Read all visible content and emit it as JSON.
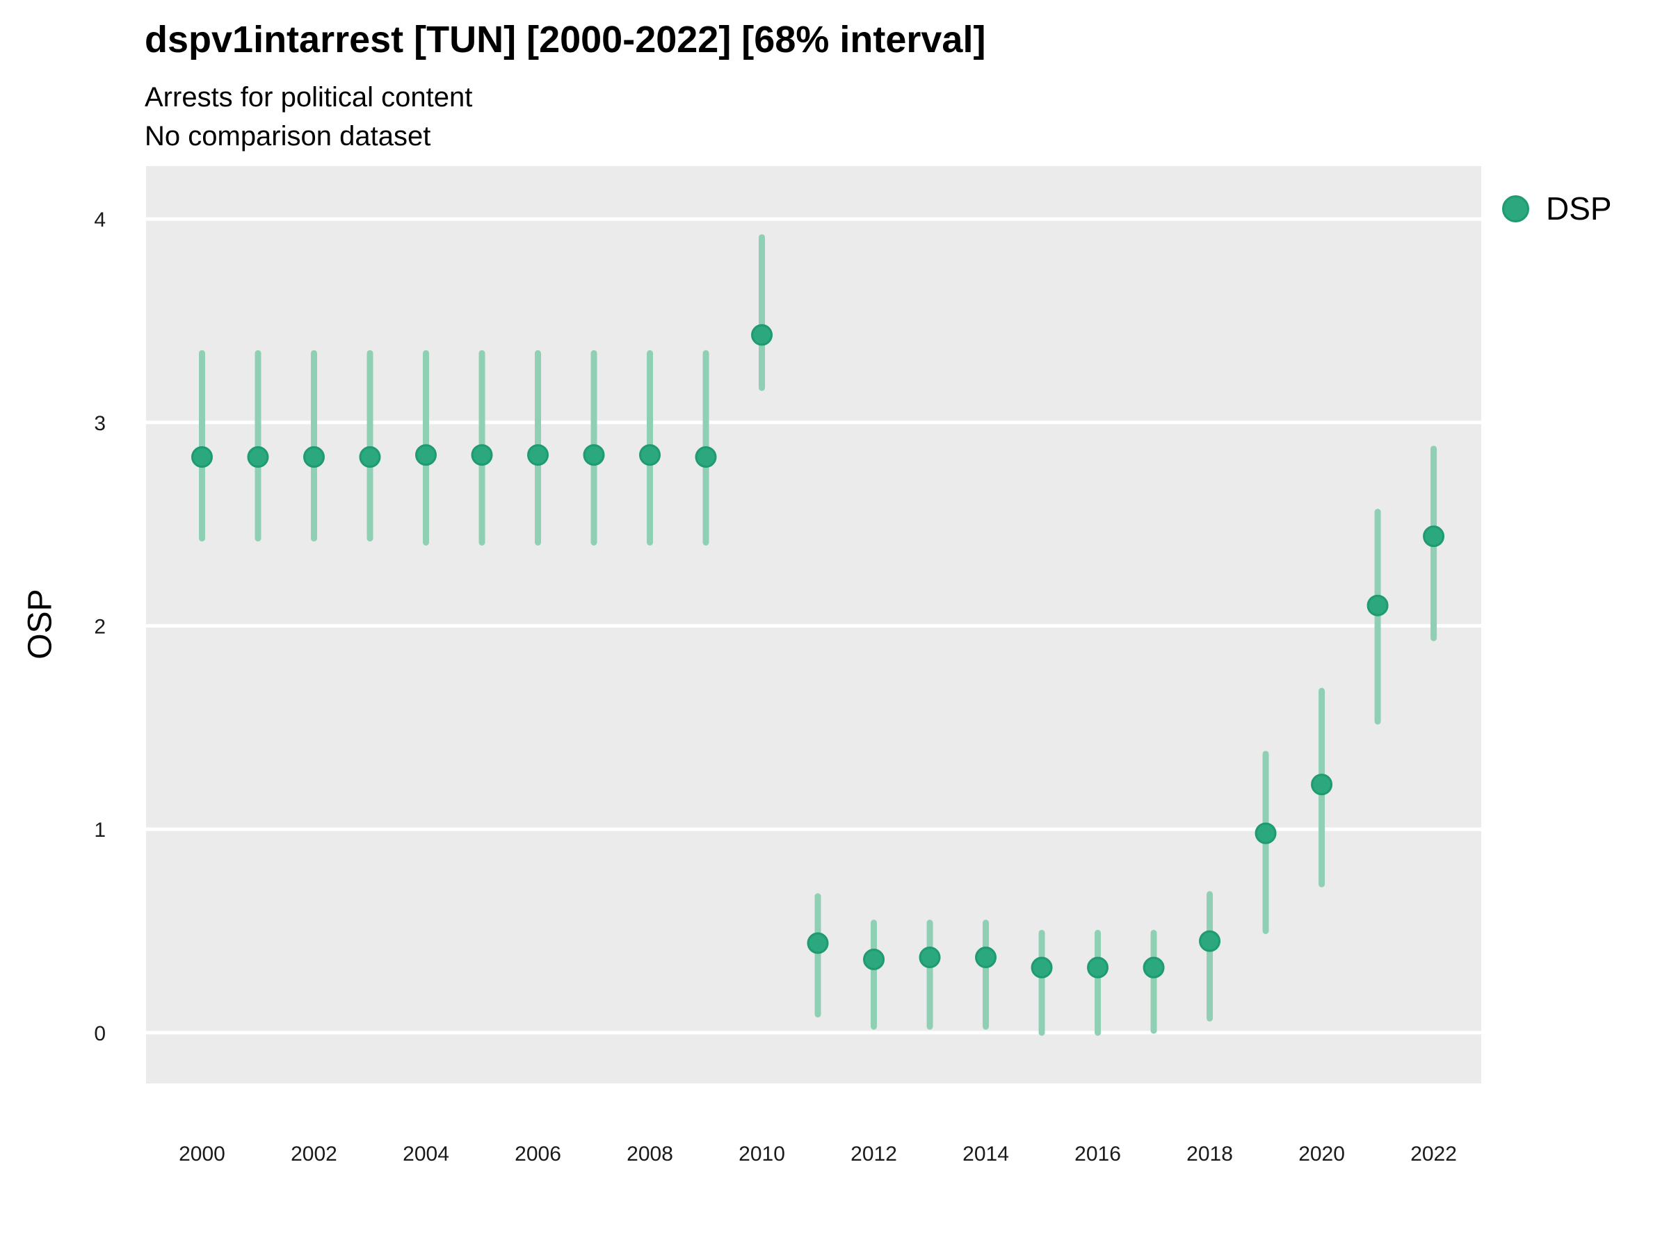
{
  "header": {
    "title": "dspv1intarrest [TUN] [2000-2022] [68% interval]",
    "subtitle_line1": "Arrests for political content",
    "subtitle_line2": "No comparison dataset"
  },
  "chart_data": {
    "type": "scatter",
    "title": "dspv1intarrest [TUN] [2000-2022] [68% interval]",
    "subtitle": [
      "Arrests for political content",
      "No comparison dataset"
    ],
    "variable": "dspv1intarrest",
    "country": "TUN",
    "year_range": "2000-2022",
    "interval": "68% interval",
    "xlabel": "",
    "ylabel": "OSP",
    "x_ticks": [
      2000,
      2002,
      2004,
      2006,
      2008,
      2010,
      2012,
      2014,
      2016,
      2018,
      2020,
      2022
    ],
    "y_ticks": [
      0,
      1,
      2,
      3,
      4
    ],
    "xlim": [
      1999.0,
      2022.85
    ],
    "ylim": [
      -0.25,
      4.26
    ],
    "grid": {
      "horizontal_major": true,
      "vertical": false
    },
    "legend": {
      "label": "DSP",
      "position": "top-right"
    },
    "series": [
      {
        "name": "DSP",
        "points": [
          {
            "year": 2000,
            "estimate": 2.83,
            "lo": 2.43,
            "hi": 3.34
          },
          {
            "year": 2001,
            "estimate": 2.83,
            "lo": 2.43,
            "hi": 3.34
          },
          {
            "year": 2002,
            "estimate": 2.83,
            "lo": 2.43,
            "hi": 3.34
          },
          {
            "year": 2003,
            "estimate": 2.83,
            "lo": 2.43,
            "hi": 3.34
          },
          {
            "year": 2004,
            "estimate": 2.84,
            "lo": 2.41,
            "hi": 3.34
          },
          {
            "year": 2005,
            "estimate": 2.84,
            "lo": 2.41,
            "hi": 3.34
          },
          {
            "year": 2006,
            "estimate": 2.84,
            "lo": 2.41,
            "hi": 3.34
          },
          {
            "year": 2007,
            "estimate": 2.84,
            "lo": 2.41,
            "hi": 3.34
          },
          {
            "year": 2008,
            "estimate": 2.84,
            "lo": 2.41,
            "hi": 3.34
          },
          {
            "year": 2009,
            "estimate": 2.83,
            "lo": 2.41,
            "hi": 3.34
          },
          {
            "year": 2010,
            "estimate": 3.43,
            "lo": 3.17,
            "hi": 3.91
          },
          {
            "year": 2011,
            "estimate": 0.44,
            "lo": 0.09,
            "hi": 0.67
          },
          {
            "year": 2012,
            "estimate": 0.36,
            "lo": 0.03,
            "hi": 0.54
          },
          {
            "year": 2013,
            "estimate": 0.37,
            "lo": 0.03,
            "hi": 0.54
          },
          {
            "year": 2014,
            "estimate": 0.37,
            "lo": 0.03,
            "hi": 0.54
          },
          {
            "year": 2015,
            "estimate": 0.32,
            "lo": 0.0,
            "hi": 0.49
          },
          {
            "year": 2016,
            "estimate": 0.32,
            "lo": 0.0,
            "hi": 0.49
          },
          {
            "year": 2017,
            "estimate": 0.32,
            "lo": 0.01,
            "hi": 0.49
          },
          {
            "year": 2018,
            "estimate": 0.45,
            "lo": 0.07,
            "hi": 0.68
          },
          {
            "year": 2019,
            "estimate": 0.98,
            "lo": 0.5,
            "hi": 1.37
          },
          {
            "year": 2020,
            "estimate": 1.22,
            "lo": 0.73,
            "hi": 1.68
          },
          {
            "year": 2021,
            "estimate": 2.1,
            "lo": 1.53,
            "hi": 2.56
          },
          {
            "year": 2022,
            "estimate": 2.44,
            "lo": 1.94,
            "hi": 2.87
          }
        ]
      }
    ],
    "colors": {
      "point_fill": "#2ba87d",
      "point_stroke": "#1e9b6f",
      "interval_bar": "#8fd0b4",
      "panel_background": "#ebebeb",
      "gridline": "#ffffff",
      "text": "#000000",
      "tick_text": "#1a1a1a"
    }
  }
}
